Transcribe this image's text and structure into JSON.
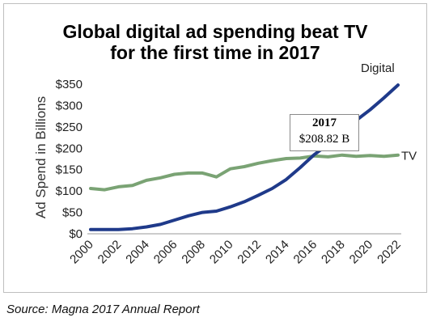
{
  "chart_data": {
    "type": "line",
    "title_line1": "Global digital ad spending beat TV",
    "title_line2": "for the first time in 2017",
    "ylabel": "Ad Spend in Billions",
    "xlabel": "",
    "ylim": [
      0,
      350
    ],
    "xlim": [
      2000,
      2022
    ],
    "yticks": [
      "$0",
      "$50",
      "$100",
      "$150",
      "$200",
      "$250",
      "$300",
      "$350"
    ],
    "ytick_values": [
      0,
      50,
      100,
      150,
      200,
      250,
      300,
      350
    ],
    "xticks": [
      2000,
      2002,
      2004,
      2006,
      2008,
      2010,
      2012,
      2014,
      2016,
      2018,
      2020,
      2022
    ],
    "x": [
      2000,
      2001,
      2002,
      2003,
      2004,
      2005,
      2006,
      2007,
      2008,
      2009,
      2010,
      2011,
      2012,
      2013,
      2014,
      2015,
      2016,
      2017,
      2018,
      2019,
      2020,
      2021,
      2022
    ],
    "series": [
      {
        "name": "Digital",
        "color": "#1f3a8a",
        "values": [
          10,
          10,
          10,
          12,
          16,
          22,
          32,
          42,
          50,
          53,
          63,
          75,
          90,
          106,
          127,
          155,
          185,
          209,
          235,
          265,
          290,
          318,
          348
        ]
      },
      {
        "name": "TV",
        "color": "#7aa374",
        "values": [
          106,
          103,
          110,
          113,
          125,
          131,
          139,
          142,
          142,
          133,
          152,
          157,
          165,
          171,
          176,
          177,
          182,
          180,
          184,
          181,
          183,
          181,
          184
        ]
      }
    ],
    "annotation": {
      "year": "2017",
      "value": "$208.82 B",
      "x": 2017,
      "y": 208.82
    },
    "grid": false,
    "legend": "inline-labels"
  },
  "source": "Source:  Magna 2017 Annual Report"
}
